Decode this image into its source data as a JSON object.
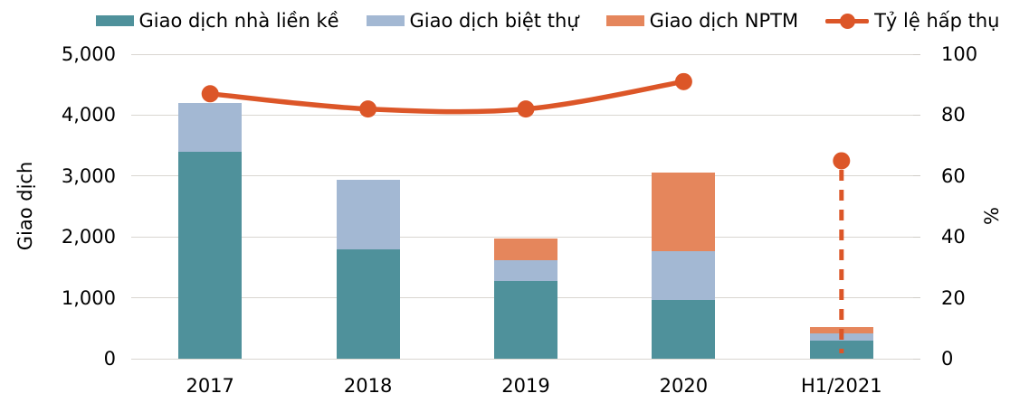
{
  "chart_data": {
    "type": "bar",
    "title": "",
    "categories": [
      "2017",
      "2018",
      "2019",
      "2020",
      "H1/2021"
    ],
    "series": [
      {
        "name": "Giao dịch nhà liền kề",
        "color": "#4f919b",
        "values": [
          3400,
          1800,
          1280,
          970,
          290
        ]
      },
      {
        "name": "Giao dịch biệt thự",
        "color": "#a3b8d3",
        "values": [
          800,
          1140,
          340,
          790,
          125
        ]
      },
      {
        "name": "Giao dịch NPTM",
        "color": "#e5865c",
        "values": [
          0,
          0,
          360,
          1300,
          110
        ]
      }
    ],
    "line_series": {
      "type": "line",
      "name": "Tỷ lệ hấp thụ",
      "color": "#dc5628",
      "values": [
        87,
        82,
        82,
        91,
        65
      ],
      "isolated_point_index": 4,
      "drop_line_dashed": true
    },
    "left_axis": {
      "label": "Giao dịch",
      "ticks": [
        "5,000",
        "4,000",
        "3,000",
        "2,000",
        "1,000",
        "0"
      ],
      "range": [
        0,
        5000
      ]
    },
    "right_axis": {
      "label": "%",
      "ticks": [
        "100",
        "80",
        "60",
        "40",
        "20",
        "0"
      ],
      "range": [
        0,
        100
      ]
    },
    "legend_position": "top",
    "grid": "horizontal",
    "stacked": true
  }
}
